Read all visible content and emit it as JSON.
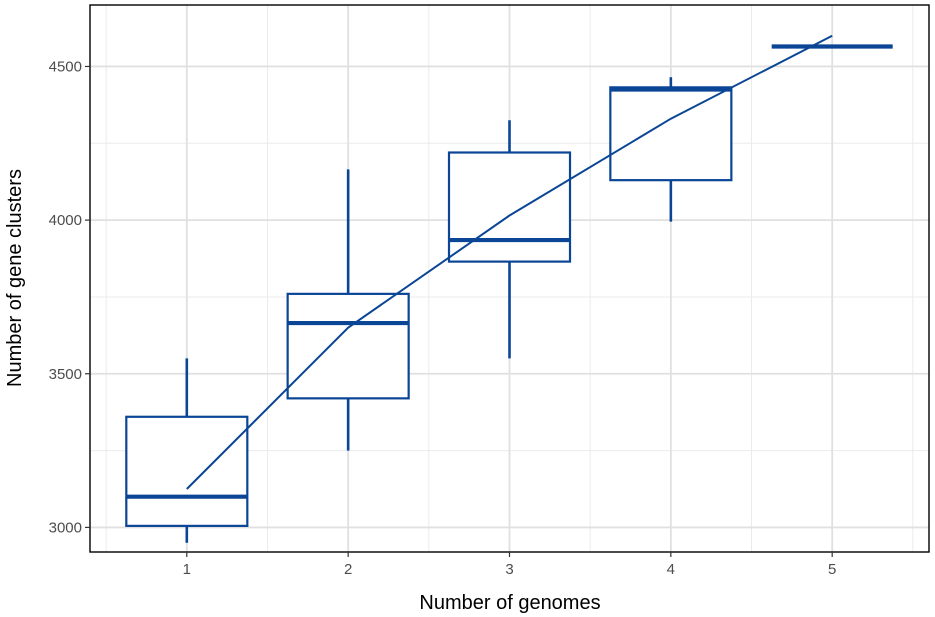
{
  "chart_data": {
    "type": "box",
    "xlabel": "Number of genomes",
    "ylabel": "Number of gene clusters",
    "x_ticks": [
      "1",
      "2",
      "3",
      "4",
      "5"
    ],
    "y_ticks": [
      3000,
      3500,
      4000,
      4500
    ],
    "xlim": [
      0.4,
      5.6
    ],
    "ylim": [
      2920,
      4700
    ],
    "grid": true,
    "color": "#0b4596",
    "boxes": [
      {
        "x": 1,
        "whisker_low": 2950,
        "q1": 3005,
        "median": 3100,
        "q3": 3360,
        "whisker_high": 3550
      },
      {
        "x": 2,
        "whisker_low": 3250,
        "q1": 3420,
        "median": 3665,
        "q3": 3760,
        "whisker_high": 4165
      },
      {
        "x": 3,
        "whisker_low": 3550,
        "q1": 3865,
        "median": 3935,
        "q3": 4220,
        "whisker_high": 4325
      },
      {
        "x": 4,
        "whisker_low": 3995,
        "q1": 4130,
        "median": 4425,
        "q3": 4432,
        "whisker_high": 4465
      },
      {
        "x": 5,
        "whisker_low": 4565,
        "q1": 4565,
        "median": 4565,
        "q3": 4565,
        "whisker_high": 4565
      }
    ],
    "trend_line": {
      "x": [
        1,
        2,
        3,
        4,
        5
      ],
      "y": [
        3125,
        3650,
        4015,
        4330,
        4600
      ]
    }
  }
}
